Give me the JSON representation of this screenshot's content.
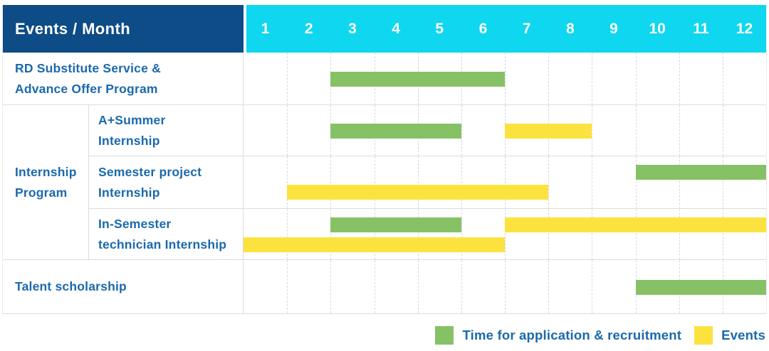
{
  "header": {
    "title": "Events / Month",
    "months": [
      "1",
      "2",
      "3",
      "4",
      "5",
      "6",
      "7",
      "8",
      "9",
      "10",
      "11",
      "12"
    ]
  },
  "colors": {
    "header_bg": "#0d4c87",
    "months_bg": "#0fd7ef",
    "label_text": "#1b69ad",
    "application_green": "#86c166",
    "events_yellow": "#fce23f",
    "grid_line": "#dcdcdc"
  },
  "group": {
    "line1": "Internship",
    "line2": "Program"
  },
  "rows": [
    {
      "label_line1": "RD Substitute Service &",
      "label_line2": "Advance Offer Program"
    },
    {
      "label_line1": "A+Summer",
      "label_line2": "Internship"
    },
    {
      "label_line1": "Semester project",
      "label_line2": "Internship"
    },
    {
      "label_line1": "In-Semester",
      "label_line2": "technician Internship"
    },
    {
      "label_line1": "Talent scholarship"
    }
  ],
  "legend": {
    "application": "Time for application & recruitment",
    "events": "Events"
  },
  "chart_data": {
    "type": "bar",
    "subtype": "gantt-timeline",
    "title": "Events / Month",
    "x_axis": {
      "unit": "month",
      "ticks": [
        1,
        2,
        3,
        4,
        5,
        6,
        7,
        8,
        9,
        10,
        11,
        12
      ],
      "range": [
        1,
        12
      ]
    },
    "legend_position": "bottom-right",
    "grid": "dashed-vertical-month-lines",
    "series_legend": [
      {
        "name": "Time for application & recruitment",
        "color": "#86c166"
      },
      {
        "name": "Events",
        "color": "#fce23f"
      }
    ],
    "tasks": [
      {
        "name": "RD Substitute Service & Advance Offer Program",
        "group": null,
        "bars": [
          {
            "series": "Time for application & recruitment",
            "start_month": 3,
            "end_month": 6,
            "lane": "mid"
          }
        ]
      },
      {
        "name": "A+Summer Internship",
        "group": "Internship Program",
        "bars": [
          {
            "series": "Time for application & recruitment",
            "start_month": 3,
            "end_month": 5,
            "lane": "mid"
          },
          {
            "series": "Events",
            "start_month": 7,
            "end_month": 8,
            "lane": "mid"
          }
        ]
      },
      {
        "name": "Semester project Internship",
        "group": "Internship Program",
        "bars": [
          {
            "series": "Time for application & recruitment",
            "start_month": 10,
            "end_month": 12,
            "lane": "top"
          },
          {
            "series": "Events",
            "start_month": 2,
            "end_month": 7,
            "lane": "bottom"
          }
        ]
      },
      {
        "name": "In-Semester technician Internship",
        "group": "Internship Program",
        "bars": [
          {
            "series": "Time for application & recruitment",
            "start_month": 3,
            "end_month": 5,
            "lane": "top"
          },
          {
            "series": "Events",
            "start_month": 7,
            "end_month": 12,
            "lane": "top"
          },
          {
            "series": "Events",
            "start_month": 1,
            "end_month": 6,
            "lane": "bottom"
          }
        ]
      },
      {
        "name": "Talent scholarship",
        "group": null,
        "bars": [
          {
            "series": "Time for application & recruitment",
            "start_month": 10,
            "end_month": 12,
            "lane": "mid"
          }
        ]
      }
    ]
  }
}
